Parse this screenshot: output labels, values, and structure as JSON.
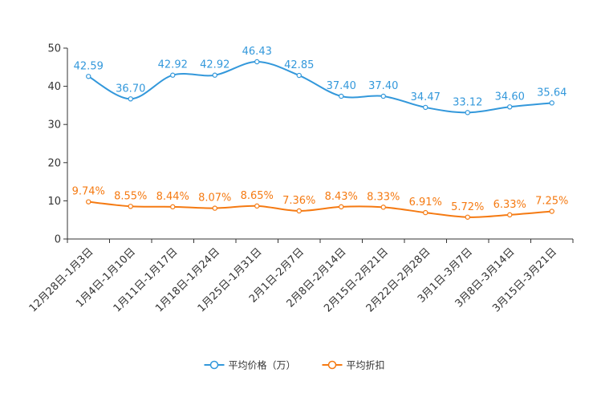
{
  "chart_data": {
    "type": "line",
    "categories": [
      "12月28日-1月3日",
      "1月4日-1月10日",
      "1月11日-1月17日",
      "1月18日-1月24日",
      "1月25日-1月31日",
      "2月1日-2月7日",
      "2月8日-2月14日",
      "2月15日-2月21日",
      "2月22日-2月28日",
      "3月1日-3月7日",
      "3月8日-3月14日",
      "3月15日-3月21日"
    ],
    "series": [
      {
        "name": "平均价格（万）",
        "color": "#3398DB",
        "values": [
          42.59,
          36.7,
          42.92,
          42.92,
          46.43,
          42.85,
          37.4,
          37.4,
          34.47,
          33.12,
          34.6,
          35.64
        ],
        "labels": [
          "42.59",
          "36.70",
          "42.92",
          "42.92",
          "46.43",
          "42.85",
          "37.40",
          "37.40",
          "34.47",
          "33.12",
          "34.60",
          "35.64"
        ]
      },
      {
        "name": "平均折扣",
        "color": "#F57A12",
        "values": [
          9.74,
          8.55,
          8.44,
          8.07,
          8.65,
          7.36,
          8.43,
          8.33,
          6.91,
          5.72,
          6.33,
          7.25
        ],
        "labels": [
          "9.74%",
          "8.55%",
          "8.44%",
          "8.07%",
          "8.65%",
          "7.36%",
          "8.43%",
          "8.33%",
          "6.91%",
          "5.72%",
          "6.33%",
          "7.25%"
        ]
      }
    ],
    "ylim": [
      0,
      50
    ],
    "yticks": [
      "0",
      "10",
      "20",
      "30",
      "40",
      "50"
    ],
    "title": "",
    "xlabel": "",
    "ylabel": "",
    "grid": false,
    "smooth": true,
    "legend_position": "bottom-center"
  }
}
